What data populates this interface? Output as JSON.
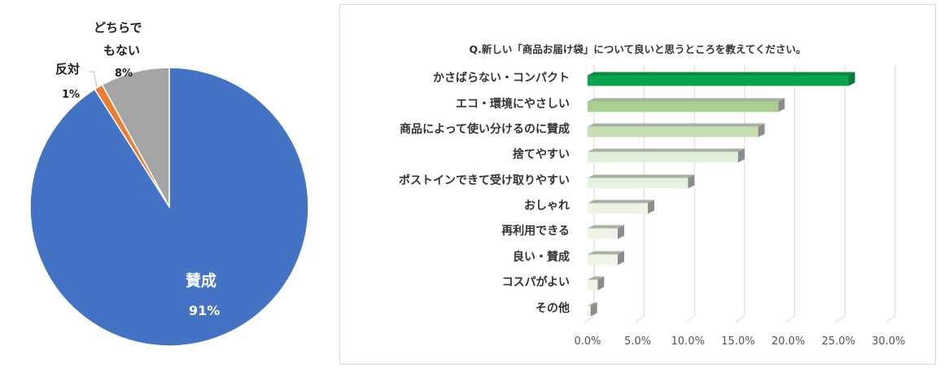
{
  "chart_data": [
    {
      "type": "pie",
      "title": "",
      "categories": [
        "賛成",
        "反対",
        "どちらでもない"
      ],
      "values": [
        91,
        1,
        8
      ],
      "unit": "%",
      "colors": [
        "#4472c4",
        "#ed7d31",
        "#a5a5a5"
      ],
      "labels": {
        "agree": {
          "name": "賛成",
          "pct": "91%"
        },
        "disagree": {
          "name": "反対",
          "pct": "1%"
        },
        "neither": {
          "name_line1": "どちらで",
          "name_line2": "もない",
          "pct": "8%"
        }
      }
    },
    {
      "type": "bar",
      "orientation": "horizontal",
      "title": "Q.新しい「商品お届け袋」について良いと思うところを教えてください。",
      "categories": [
        "かさばらない・コンパクト",
        "エコ・環境にやさしい",
        "商品によって使い分けるのに賛成",
        "捨てやすい",
        "ポストインできて受け取りやすい",
        "おしゃれ",
        "再利用できる",
        "良い・賛成",
        "コスパがよい",
        "その他"
      ],
      "values": [
        26,
        19,
        17,
        15,
        10,
        6,
        3,
        3,
        1,
        0.3
      ],
      "unit": "%",
      "xlabel": "",
      "ylabel": "",
      "xlim": [
        0,
        30
      ],
      "x_ticks": [
        "0.0%",
        "5.0%",
        "10.0%",
        "15.0%",
        "20.0%",
        "25.0%",
        "30.0%"
      ],
      "grid": true,
      "legend": null,
      "bar_colors": [
        "#0aa34f",
        "#a9d08e",
        "#c6e0b4",
        "#e2efda",
        "#e9f2e1",
        "#eef4e6",
        "#eef4e6",
        "#eef4e6",
        "#eef4e6",
        "#eef4e6"
      ]
    }
  ]
}
